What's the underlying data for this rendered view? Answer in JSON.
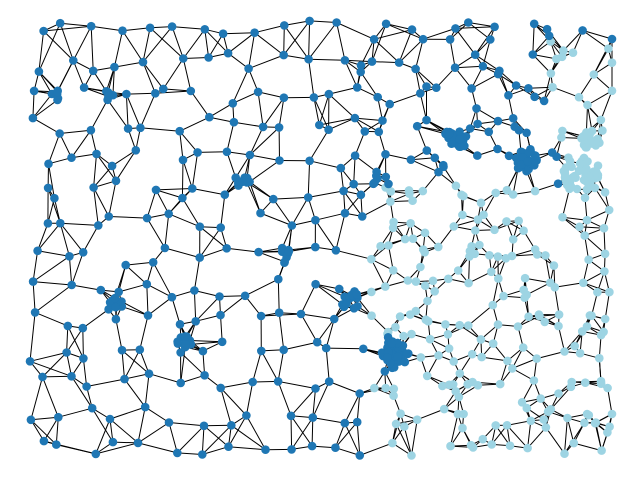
{
  "graph": {
    "edge_color": "#000000",
    "node_colors": {
      "group_a": "#1f77b4",
      "group_b": "#9dd4e3"
    }
  }
}
